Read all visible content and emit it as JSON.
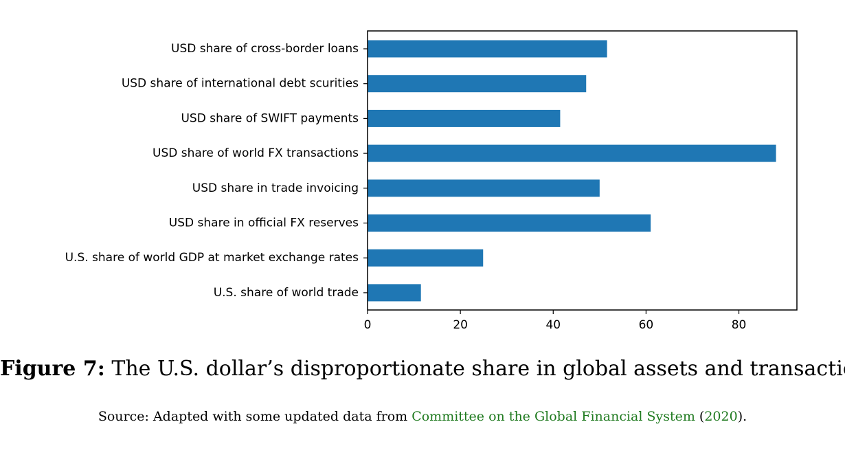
{
  "chart_data": {
    "type": "bar",
    "orientation": "horizontal",
    "categories": [
      "USD share of cross-border loans",
      "USD share of international debt scurities",
      "USD share of SWIFT payments",
      "USD share of world FX transactions",
      "USD share in trade invoicing",
      "USD share in official FX reserves",
      "U.S. share of world GDP at market exchange rates",
      "U.S. share of world trade"
    ],
    "values": [
      51.6,
      47.1,
      41.5,
      88.0,
      50.0,
      61.0,
      24.9,
      11.5
    ],
    "xticks": [
      "0",
      "20",
      "40",
      "60",
      "80"
    ],
    "xlim": [
      0,
      92.5
    ],
    "bar_color": "#1f77b4",
    "grid": false,
    "xlabel": "",
    "ylabel": ""
  },
  "caption": {
    "figure_label": "Figure 7:",
    "title": "The U.S. dollar’s disproportionate share in global assets and transactions",
    "source_prefix": "Source: Adapted with some updated data from ",
    "source_link": "Committee on the Global Financial System",
    "source_paren_open": " (",
    "source_year": "2020",
    "source_paren_close": ")."
  },
  "colors": {
    "bar": "#1f77b4",
    "link": "#1f7a1f"
  }
}
